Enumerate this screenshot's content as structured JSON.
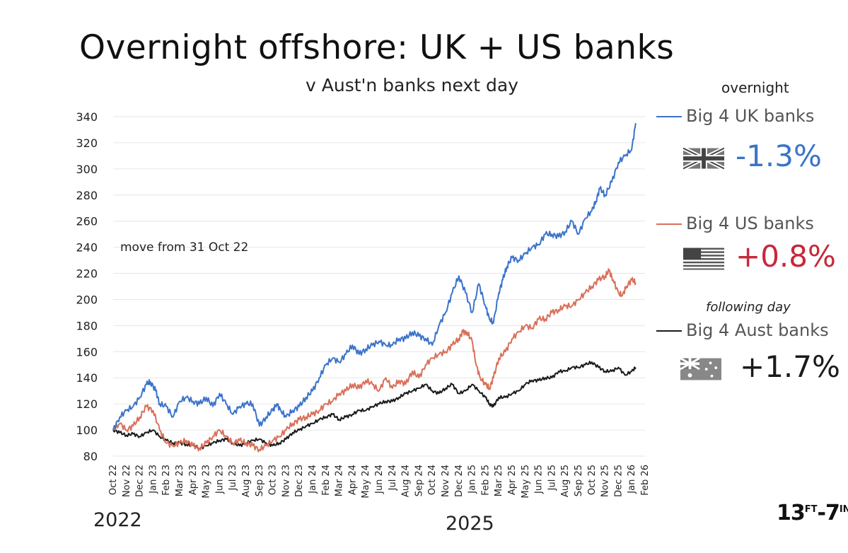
{
  "title": "Overnight offshore: UK + US banks",
  "subtitle": "v Aust'n banks next day",
  "overnight_label": "overnight",
  "following_day_label": "following day",
  "annotation": "move from  31 Oct 22",
  "year_left": "2022",
  "year_right": "2025",
  "logo": {
    "num1": "13",
    "ft": "FT",
    "dash": "-",
    "num2": "7",
    "in": "IN"
  },
  "legend": [
    {
      "label": "Big 4 UK banks",
      "change": "-1.3%",
      "color": "#3b73c9",
      "change_color": "#3b73c9",
      "flag": "uk-flag-icon"
    },
    {
      "label": "Big 4 US banks",
      "change": "+0.8%",
      "color": "#d9705a",
      "change_color": "#c8283a",
      "flag": "us-flag-icon"
    },
    {
      "label": "Big 4 Aust banks",
      "change": "+1.7%",
      "color": "#1a1a1a",
      "change_color": "#1a1a1a",
      "flag": "au-flag-icon"
    }
  ],
  "chart_data": {
    "type": "line",
    "ylim": [
      80,
      340
    ],
    "yticks": [
      80,
      100,
      120,
      140,
      160,
      180,
      200,
      220,
      240,
      260,
      280,
      300,
      320,
      340
    ],
    "xtick_labels": [
      "Oct 22",
      "Nov 22",
      "Dec 22",
      "Jan 23",
      "Feb 23",
      "Mar 23",
      "Apr 23",
      "May 23",
      "Jun 23",
      "Jul 23",
      "Aug 23",
      "Sep 23",
      "Oct 23",
      "Nov 23",
      "Dec 23",
      "Jan 24",
      "Feb 24",
      "Mar 24",
      "Apr 24",
      "May 24",
      "Jun 24",
      "Jul 24",
      "Aug 24",
      "Sep 24",
      "Oct 24",
      "Nov 24",
      "Dec 24",
      "Jan 25",
      "Feb 25",
      "Mar 25",
      "Apr 25",
      "May 25",
      "Jun 25",
      "Jul 25",
      "Aug 25",
      "Sep 25",
      "Oct 25",
      "Nov 25",
      "Dec 25",
      "Jan 26",
      "Feb 26"
    ],
    "x_unit": "months since Oct 2022",
    "series": [
      {
        "name": "Big 4 UK banks",
        "color": "#3b73c9",
        "x": [
          0,
          0.5,
          1,
          1.5,
          2,
          2.5,
          2.8,
          3.2,
          3.5,
          4,
          4.5,
          5,
          5.5,
          6,
          6.5,
          7,
          7.5,
          8,
          8.5,
          9,
          9.5,
          10,
          10.5,
          11,
          11.5,
          12,
          12.3,
          12.6,
          13,
          13.5,
          14,
          14.5,
          15,
          15.5,
          16,
          16.5,
          17,
          17.5,
          18,
          18.5,
          19,
          19.5,
          20,
          20.5,
          21,
          21.5,
          22,
          22.5,
          23,
          23.5,
          24,
          24.5,
          25,
          25.5,
          26,
          26.5,
          27,
          27.5,
          28,
          28.3,
          28.6,
          29,
          29.3,
          29.6,
          30,
          30.5,
          31,
          31.5,
          32,
          32.5,
          33,
          33.5,
          34,
          34.5,
          35,
          35.5,
          36,
          36.3,
          36.6,
          37,
          37.5,
          38,
          38.5,
          39,
          39.3
        ],
        "y": [
          100,
          110,
          115,
          118,
          125,
          135,
          137,
          130,
          120,
          118,
          110,
          122,
          125,
          122,
          120,
          125,
          118,
          128,
          120,
          112,
          118,
          120,
          120,
          103,
          110,
          115,
          120,
          115,
          110,
          115,
          118,
          125,
          130,
          140,
          150,
          155,
          152,
          158,
          165,
          158,
          162,
          165,
          168,
          165,
          165,
          170,
          170,
          175,
          172,
          170,
          165,
          180,
          190,
          205,
          218,
          205,
          190,
          212,
          195,
          185,
          182,
          205,
          215,
          225,
          232,
          230,
          235,
          240,
          242,
          250,
          250,
          248,
          252,
          260,
          250,
          262,
          268,
          275,
          285,
          280,
          290,
          305,
          310,
          315,
          335
        ]
      },
      {
        "name": "Big 4 US banks",
        "color": "#d9705a",
        "x": [
          0,
          0.5,
          1,
          1.5,
          2,
          2.5,
          3,
          3.5,
          4,
          4.5,
          5,
          5.5,
          6,
          6.5,
          7,
          7.5,
          8,
          8.5,
          9,
          9.5,
          10,
          10.5,
          11,
          11.5,
          12,
          12.5,
          13,
          13.5,
          14,
          14.5,
          15,
          15.5,
          16,
          16.5,
          17,
          17.5,
          18,
          18.5,
          19,
          19.5,
          20,
          20.5,
          21,
          21.5,
          22,
          22.5,
          23,
          23.5,
          24,
          24.5,
          25,
          25.5,
          26,
          26.3,
          26.6,
          27,
          27.3,
          27.6,
          28,
          28.3,
          28.6,
          29,
          29.5,
          30,
          30.5,
          31,
          31.5,
          32,
          32.5,
          33,
          33.5,
          34,
          34.5,
          35,
          35.5,
          36,
          36.5,
          37,
          37.3,
          37.6,
          38,
          38.3,
          38.6,
          39,
          39.3
        ],
        "y": [
          100,
          105,
          100,
          103,
          110,
          118,
          115,
          100,
          90,
          88,
          90,
          92,
          88,
          86,
          90,
          95,
          100,
          95,
          90,
          92,
          90,
          88,
          85,
          88,
          92,
          95,
          100,
          105,
          108,
          110,
          112,
          115,
          120,
          122,
          128,
          130,
          135,
          132,
          138,
          135,
          130,
          140,
          132,
          138,
          135,
          145,
          140,
          150,
          155,
          158,
          160,
          165,
          170,
          175,
          175,
          168,
          150,
          140,
          135,
          132,
          140,
          155,
          160,
          170,
          175,
          180,
          178,
          185,
          185,
          190,
          192,
          195,
          195,
          200,
          205,
          210,
          215,
          218,
          222,
          215,
          205,
          203,
          210,
          215,
          213
        ]
      },
      {
        "name": "Big 4 Aust banks",
        "color": "#1a1a1a",
        "x": [
          0,
          0.5,
          1,
          1.5,
          2,
          2.5,
          3,
          3.5,
          4,
          4.5,
          5,
          5.5,
          6,
          6.5,
          7,
          7.5,
          8,
          8.5,
          9,
          9.5,
          10,
          10.5,
          11,
          11.5,
          12,
          12.5,
          13,
          13.5,
          14,
          14.5,
          15,
          15.5,
          16,
          16.5,
          17,
          17.5,
          18,
          18.5,
          19,
          19.5,
          20,
          20.5,
          21,
          21.5,
          22,
          22.5,
          23,
          23.5,
          24,
          24.5,
          25,
          25.5,
          26,
          26.5,
          27,
          27.5,
          28,
          28.3,
          28.6,
          29,
          29.5,
          30,
          30.5,
          31,
          31.5,
          32,
          32.5,
          33,
          33.5,
          34,
          34.5,
          35,
          35.5,
          36,
          36.5,
          37,
          37.5,
          38,
          38.5,
          39,
          39.3
        ],
        "y": [
          100,
          98,
          96,
          97,
          95,
          98,
          100,
          95,
          92,
          90,
          90,
          89,
          88,
          86,
          88,
          90,
          92,
          93,
          90,
          88,
          90,
          92,
          93,
          90,
          88,
          90,
          93,
          98,
          100,
          103,
          105,
          108,
          110,
          112,
          108,
          110,
          112,
          115,
          115,
          118,
          120,
          122,
          122,
          125,
          128,
          130,
          132,
          135,
          130,
          128,
          132,
          135,
          128,
          130,
          135,
          130,
          125,
          120,
          118,
          125,
          125,
          128,
          130,
          135,
          138,
          138,
          140,
          140,
          145,
          145,
          148,
          148,
          150,
          152,
          148,
          145,
          145,
          148,
          142,
          145,
          148
        ]
      }
    ]
  }
}
